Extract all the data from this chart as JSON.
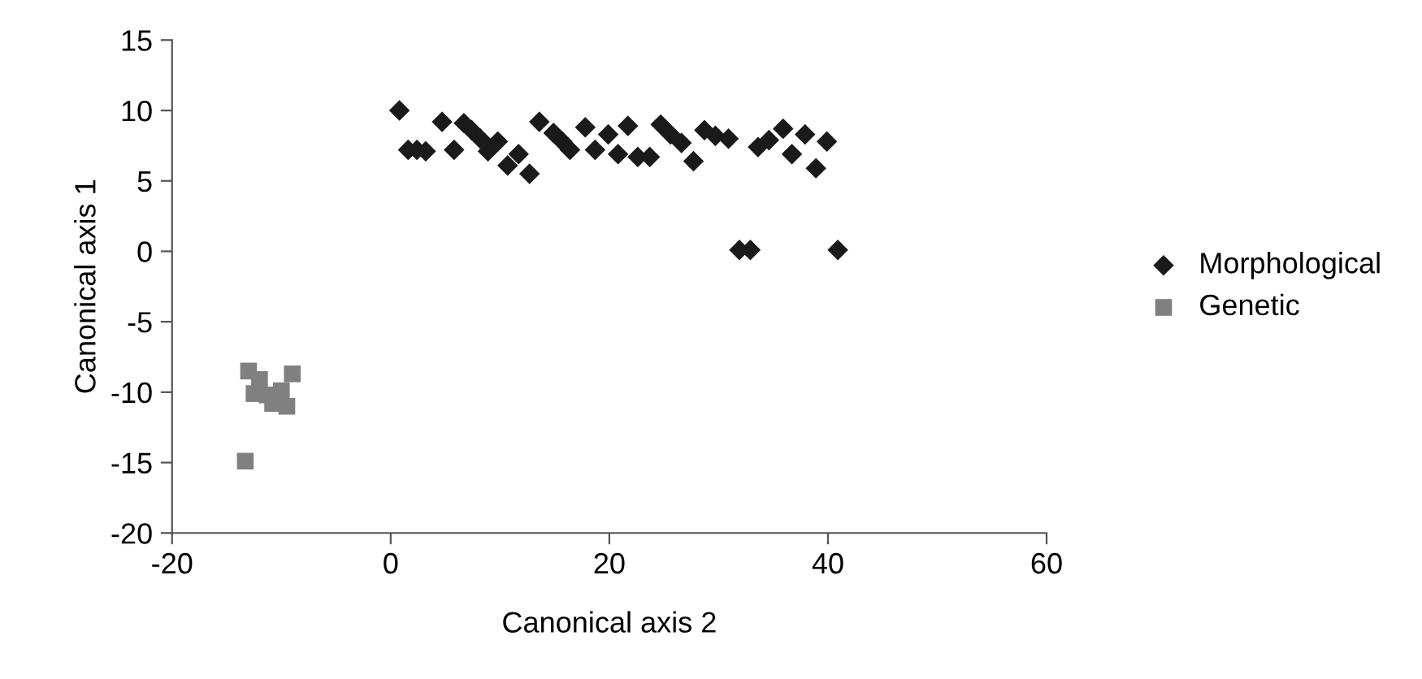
{
  "chart_data": {
    "type": "scatter",
    "xlabel": "Canonical axis 2",
    "ylabel": "Canonical axis 1",
    "xlim": [
      -20,
      60
    ],
    "xticks": [
      -20,
      0,
      20,
      40,
      60
    ],
    "ylim": [
      -20,
      15
    ],
    "yticks": [
      -20,
      -15,
      -10,
      -5,
      0,
      5,
      10,
      15
    ],
    "grid": false,
    "legend": "right",
    "series": [
      {
        "name": "Morphological",
        "color": "#1a1a1a",
        "marker": "diamond",
        "x": [
          0.8,
          1.6,
          2.4,
          3.2,
          4.7,
          5.8,
          6.7,
          7.4,
          8.2,
          8.9,
          9.8,
          10.7,
          11.7,
          12.7,
          13.6,
          14.9,
          15.7,
          16.4,
          17.8,
          18.7,
          19.9,
          20.8,
          21.7,
          22.6,
          23.7,
          24.7,
          25.6,
          26.6,
          27.7,
          28.7,
          29.7,
          30.9,
          31.9,
          32.9,
          33.6,
          34.6,
          35.9,
          36.7,
          37.9,
          38.9,
          39.9,
          40.9
        ],
        "values": [
          10.0,
          7.2,
          7.2,
          7.1,
          9.2,
          7.2,
          9.1,
          8.6,
          8.0,
          7.1,
          7.8,
          6.1,
          6.9,
          5.5,
          9.2,
          8.4,
          7.8,
          7.2,
          8.8,
          7.2,
          8.3,
          6.9,
          8.9,
          6.7,
          6.7,
          9.0,
          8.3,
          7.7,
          6.4,
          8.6,
          8.2,
          8.0,
          0.1,
          0.1,
          7.4,
          7.9,
          8.7,
          6.9,
          8.3,
          5.9,
          7.8,
          0.1
        ]
      },
      {
        "name": "Genetic",
        "color": "#808080",
        "marker": "square",
        "x": [
          -13.0,
          -12.0,
          -9.0,
          -12.5,
          -11.3,
          -10.0,
          -9.5,
          -10.8,
          -13.3
        ],
        "values": [
          -8.5,
          -9.1,
          -8.7,
          -10.1,
          -10.2,
          -9.9,
          -11.0,
          -10.8,
          -14.9
        ]
      }
    ]
  }
}
